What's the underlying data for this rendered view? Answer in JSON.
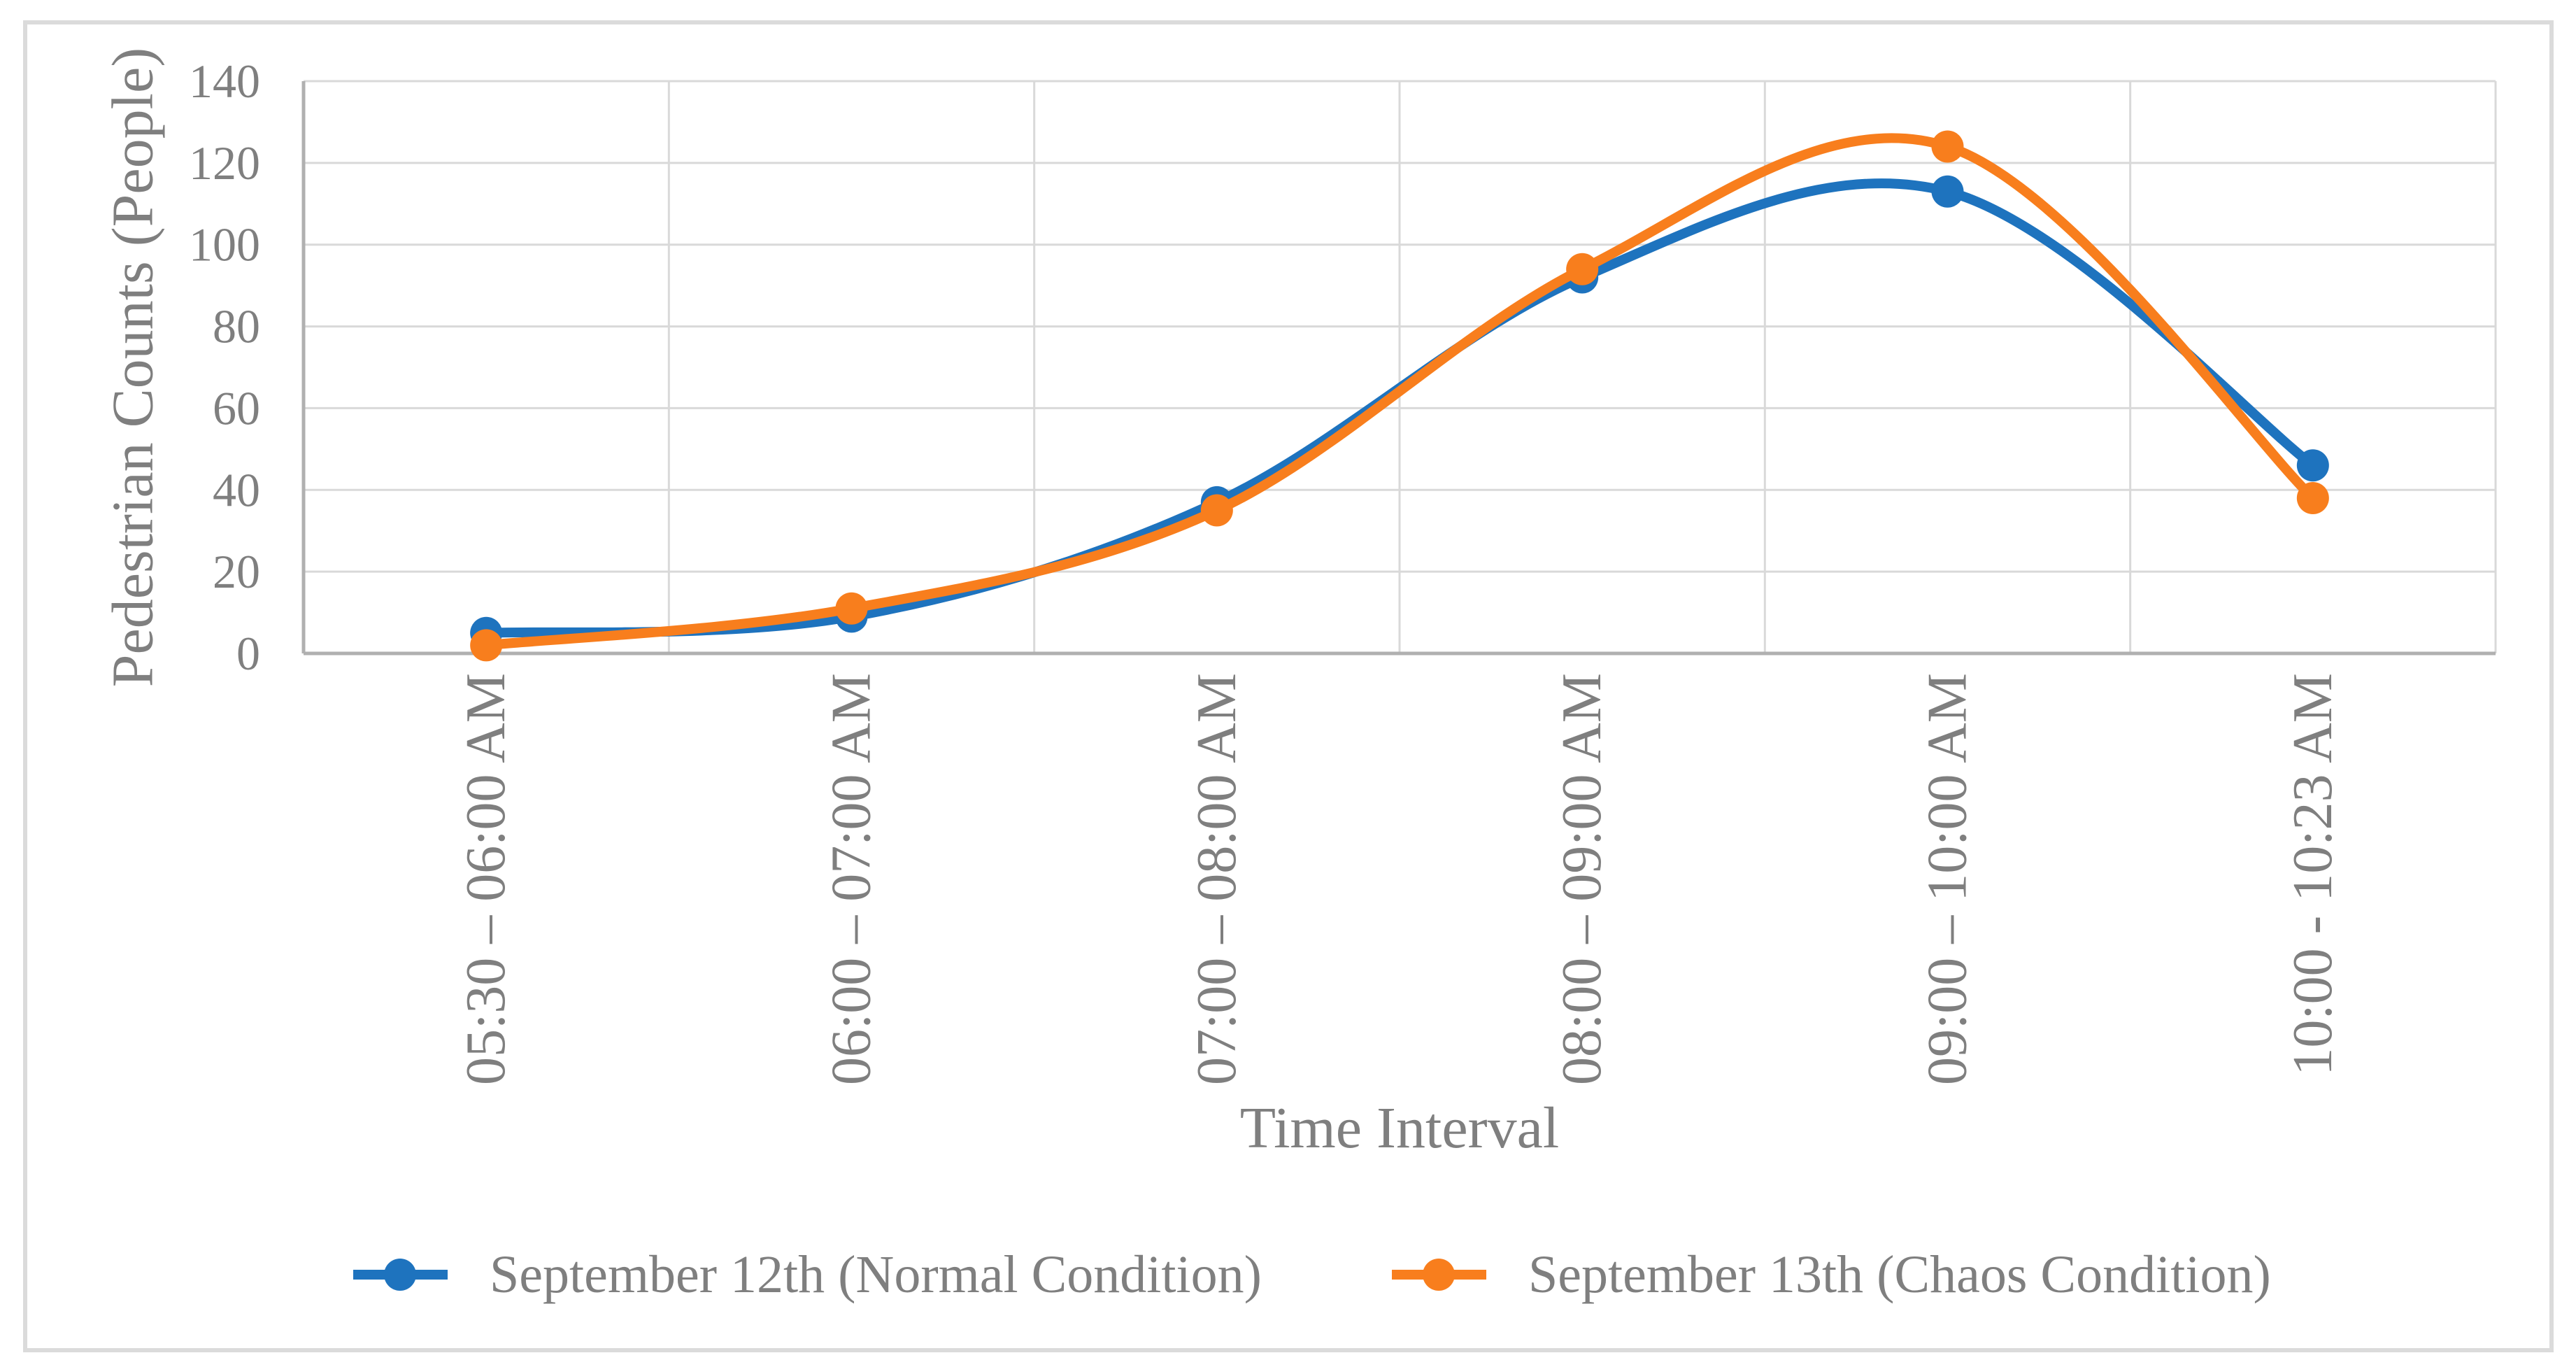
{
  "figure": {
    "background": "#FFFFFF",
    "border_color": "#DBDBDB"
  },
  "chart_data": {
    "type": "line",
    "title": "",
    "xlabel": "Time Interval",
    "ylabel": "Pedestrian Counts (People)",
    "categories": [
      "05:30 – 06:00 AM",
      "06:00 – 07:00 AM",
      "07:00 – 08:00 AM",
      "08:00 – 09:00 AM",
      "09:00 – 10:00 AM",
      "10:00 - 10:23 AM"
    ],
    "series": [
      {
        "name": "September 12th (Normal Condition)",
        "color": "#1E73BE",
        "values": [
          5,
          9,
          37,
          92,
          113,
          46
        ]
      },
      {
        "name": "September 13th (Chaos Condition)",
        "color": "#F87E1D",
        "values": [
          2,
          11,
          35,
          94,
          124,
          38
        ]
      }
    ],
    "ylim": [
      0,
      140
    ],
    "y_ticks": [
      0,
      20,
      40,
      60,
      80,
      100,
      120,
      140
    ],
    "x_tick_rotation_degrees": 90,
    "grid": true,
    "smooth_lines": true,
    "marker": "circle",
    "legend_position": "bottom",
    "style": {
      "grid_color": "#D9D9D9",
      "axis_color": "#B0B0B0",
      "text_color": "#7F7F7F"
    }
  }
}
